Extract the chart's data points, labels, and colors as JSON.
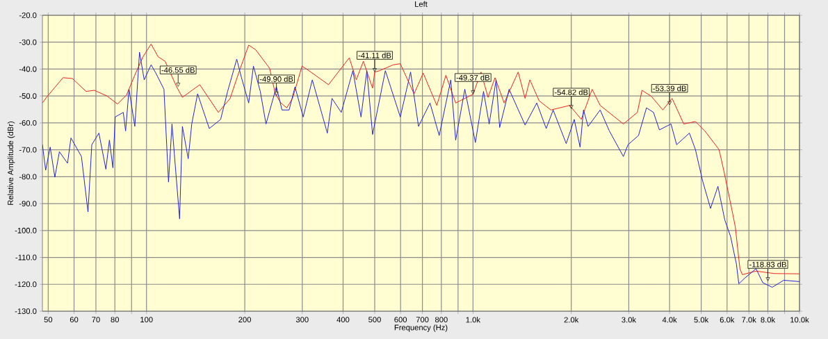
{
  "chart_data": {
    "type": "line",
    "title": "Left",
    "xlabel": "Frequency (Hz)",
    "ylabel": "Relative Amplitude (dBr)",
    "log": "x",
    "grid": true,
    "marker": "none",
    "line_style": "solid",
    "xlim": [
      48,
      10000
    ],
    "ylim": [
      -130,
      -20
    ],
    "xticks": [
      50,
      60,
      70,
      80,
      {
        "value": 90,
        "label": null
      },
      100,
      200,
      300,
      400,
      500,
      600,
      700,
      800,
      {
        "value": 900,
        "label": null
      },
      {
        "value": 1000,
        "label": "1.0k"
      },
      {
        "value": 2000,
        "label": "2.0k"
      },
      {
        "value": 3000,
        "label": "3.0k"
      },
      {
        "value": 4000,
        "label": "4.0k"
      },
      {
        "value": 5000,
        "label": "5.0k"
      },
      {
        "value": 6000,
        "label": "6.0k"
      },
      {
        "value": 7000,
        "label": "7.0k"
      },
      {
        "value": 8000,
        "label": "8.0k"
      },
      {
        "value": 9000,
        "label": null
      },
      {
        "value": 10000,
        "label": "10.0k"
      }
    ],
    "yticks": [
      {
        "value": -20,
        "label": "-20.0"
      },
      {
        "value": -30,
        "label": "-30.0"
      },
      {
        "value": -40,
        "label": "-40.0"
      },
      {
        "value": -50,
        "label": "-50.0"
      },
      {
        "value": -60,
        "label": "-60.0"
      },
      {
        "value": -70,
        "label": "-70.0"
      },
      {
        "value": -80,
        "label": "-80.0"
      },
      {
        "value": -90,
        "label": "-90.0"
      },
      {
        "value": -100,
        "label": "-100.0"
      },
      {
        "value": -110,
        "label": "-110.0"
      },
      {
        "value": -120,
        "label": "-120.0"
      },
      {
        "value": -130,
        "label": "-130.0"
      }
    ],
    "series": [
      {
        "color": "#ee2222",
        "x": [
          48,
          49.4,
          55.5,
          59.3,
          65.3,
          69.2,
          75.7,
          81.5,
          86.9,
          92.1,
          97.6,
          103.3,
          108.5,
          114,
          123.7,
          128.8,
          145.6,
          166,
          180.4,
          192.6,
          205.6,
          215.9,
          238.3,
          248,
          258,
          268.9,
          280,
          299.5,
          306.9,
          361,
          418,
          439,
          461.6,
          492.5,
          500,
          517.5,
          570,
          598.8,
          660,
          704,
          775,
          826,
          885,
          1000,
          1058,
          1112,
          1168,
          1246,
          1375,
          1444,
          1493,
          1595,
          1732,
          1978,
          2146,
          2317,
          2452,
          2888,
          3188,
          3293,
          3516,
          3815,
          4073,
          4421,
          4800,
          5130,
          5670,
          5860,
          6250,
          6360,
          6570,
          6680,
          7360,
          8380,
          10000
        ],
        "values": [
          -52.6,
          -50.5,
          -43.2,
          -43.5,
          -48.3,
          -47.9,
          -50,
          -53,
          -49.6,
          -42.2,
          -35.4,
          -30.7,
          -35.4,
          -37.1,
          -46.6,
          -50.5,
          -45.8,
          -56.1,
          -50.9,
          -40.6,
          -31.1,
          -32.8,
          -39.7,
          -49.2,
          -52.6,
          -54.4,
          -50.9,
          -38.9,
          -39.7,
          -45.8,
          -35.8,
          -44,
          -37.1,
          -47.1,
          -41.11,
          -40.6,
          -38.4,
          -38,
          -49.2,
          -41.5,
          -53.5,
          -42.3,
          -52.6,
          -49.37,
          -41.1,
          -50.5,
          -43.2,
          -52.6,
          -41.1,
          -50.9,
          -44,
          -51.8,
          -55.2,
          -53.5,
          -58.7,
          -47.5,
          -53.5,
          -60.4,
          -56.1,
          -47.9,
          -50.1,
          -55.2,
          -50.9,
          -60.4,
          -59.5,
          -63,
          -69.9,
          -77.6,
          -94,
          -98.7,
          -114.2,
          -116.4,
          -115.1,
          -116,
          -116.1
        ]
      },
      {
        "color": "#2222dd",
        "x": [
          48,
          49.1,
          50.7,
          52.4,
          54.1,
          57.3,
          58.7,
          63.2,
          66.2,
          68,
          71.5,
          75.1,
          77,
          78.9,
          80.2,
          84.9,
          86.3,
          88.4,
          92.1,
          95.2,
          98.4,
          103.3,
          106.7,
          113.1,
          116.8,
          119.7,
          121.7,
          126.3,
          128.8,
          134.2,
          137.6,
          143.4,
          155.7,
          168.7,
          177.2,
          189,
          195.4,
          205.6,
          212.6,
          223.1,
          232.3,
          249.9,
          260,
          273.4,
          285,
          302,
          322,
          358,
          370,
          395,
          428.6,
          454,
          473,
          492.5,
          539,
          598.8,
          644,
          681,
          738.6,
          788,
          855,
          885,
          944,
          1017,
          1077,
          1121,
          1177,
          1207,
          1290,
          1444,
          1568,
          1676,
          1760,
          1930,
          2042,
          2128,
          2180,
          2252,
          2452,
          2616,
          2888,
          2984,
          3213,
          3399,
          3572,
          3723,
          4040,
          4205,
          4600,
          4800,
          5048,
          5340,
          5626,
          5905,
          6150,
          6410,
          6520,
          6800,
          7360,
          7720,
          8250,
          8950,
          10000
        ],
        "values": [
          -68,
          -77.6,
          -69,
          -80.2,
          -70.7,
          -75,
          -65.6,
          -72.5,
          -93.1,
          -68.1,
          -63.8,
          -77.2,
          -66.4,
          -76.7,
          -57.8,
          -56.1,
          -63,
          -47.5,
          -61.3,
          -33.7,
          -44,
          -38.4,
          -41.4,
          -47.5,
          -82,
          -60.4,
          -71.6,
          -95.7,
          -61.3,
          -73.3,
          -60.4,
          -49.2,
          -62.1,
          -58.7,
          -48.3,
          -36.3,
          -43.2,
          -52.6,
          -38.9,
          -48.3,
          -60.4,
          -46.6,
          -55.2,
          -55.2,
          -46.6,
          -57.8,
          -44,
          -63.8,
          -50.9,
          -56.1,
          -40.6,
          -57.8,
          -40.6,
          -64.3,
          -40.6,
          -57.8,
          -41.1,
          -61.3,
          -52.6,
          -64.7,
          -44,
          -66.4,
          -47.5,
          -67.3,
          -48.3,
          -60.4,
          -44,
          -61.7,
          -47.5,
          -60.8,
          -52.6,
          -62.1,
          -55.2,
          -67.7,
          -58.7,
          -69,
          -55.2,
          -61.3,
          -55.2,
          -63,
          -72.5,
          -68.1,
          -64.7,
          -54.4,
          -56.1,
          -62.6,
          -60.4,
          -68.1,
          -63.8,
          -69.9,
          -81.5,
          -91.8,
          -83.6,
          -96.1,
          -102.2,
          -112.5,
          -119.8,
          -117.7,
          -114.2,
          -119.4,
          -121.1,
          -118.5,
          -119
        ]
      }
    ],
    "annotations": [
      {
        "text": "-46.55 dB",
        "x": 125,
        "y": -46.55
      },
      {
        "text": "-49.90 dB",
        "x": 250,
        "y": -49.9
      },
      {
        "text": "-41.11 dB",
        "x": 500,
        "y": -41.11
      },
      {
        "text": "-49.37 dB",
        "x": 1000,
        "y": -49.37
      },
      {
        "text": "-54.82 dB",
        "x": 2000,
        "y": -54.82
      },
      {
        "text": "-53.39 dB",
        "x": 4000,
        "y": -53.39
      },
      {
        "text": "-118.83 dB",
        "x": 8000,
        "y": -118.83
      }
    ]
  }
}
